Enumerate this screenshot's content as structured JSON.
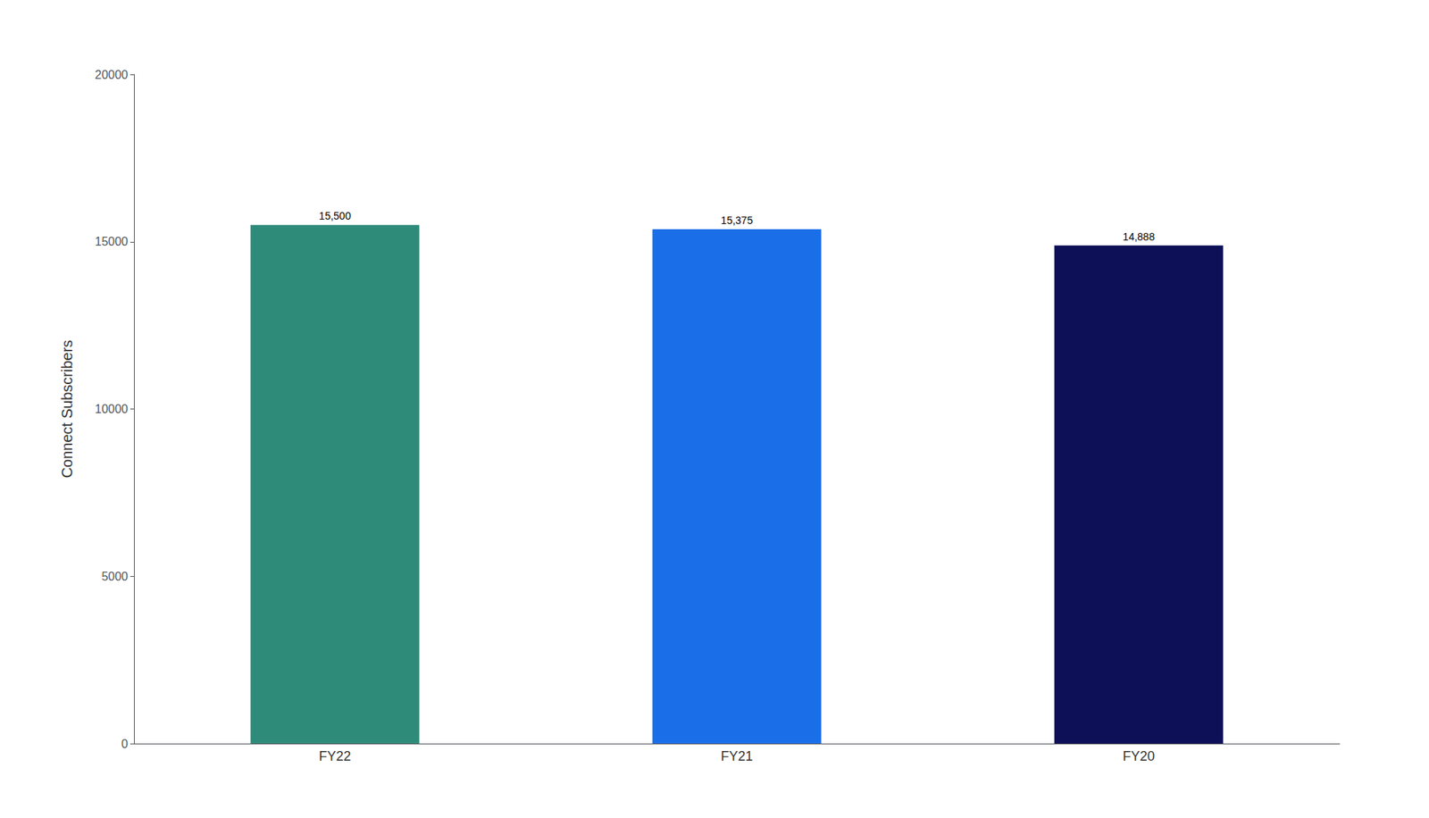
{
  "chart_data": {
    "type": "bar",
    "ylabel": "Connect Subscribers",
    "categories": [
      "FY22",
      "FY21",
      "FY20"
    ],
    "values": [
      15500,
      15375,
      14888
    ],
    "value_labels": [
      "15,500",
      "15,375",
      "14,888"
    ],
    "colors": [
      "#2e8b7a",
      "#1a6fe8",
      "#0d1057"
    ],
    "ylim": [
      0,
      20000
    ],
    "yticks": [
      0,
      5000,
      10000,
      15000,
      20000
    ],
    "grid": false,
    "data_labels": true
  }
}
